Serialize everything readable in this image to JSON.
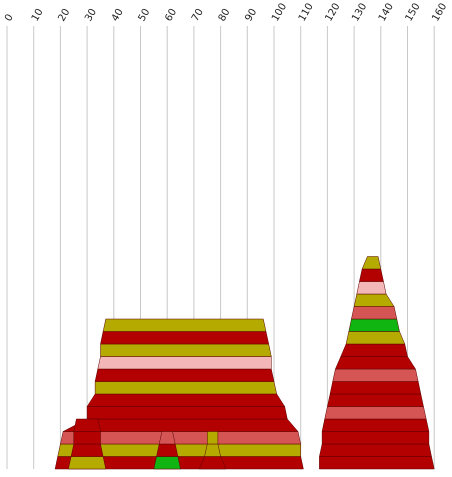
{
  "chart_data": {
    "type": "area",
    "x_axis": {
      "ticks": [
        "0",
        "10",
        "20",
        "30",
        "40",
        "50",
        "60",
        "70",
        "80",
        "90",
        "100",
        "110",
        "120",
        "130",
        "140",
        "150",
        "160"
      ],
      "tick_values": [
        0,
        10,
        20,
        30,
        40,
        50,
        60,
        70,
        80,
        90,
        100,
        110,
        120,
        130,
        140,
        150,
        160
      ],
      "range": [
        0,
        165
      ],
      "label_rotation": -60
    },
    "grid": true,
    "palette": {
      "red": "#b30000",
      "salmon": "#d55555",
      "olive": "#b5aa00",
      "green": "#11b511",
      "pink": "#f4b7b7"
    },
    "stacks": [
      {
        "name": "",
        "layers": [
          {
            "color": "red",
            "bottom": [
              18,
              111
            ],
            "top": [
              19,
              110
            ]
          },
          {
            "color": "olive",
            "bottom": [
              19,
              110
            ],
            "top": [
              20,
              110
            ]
          },
          {
            "color": "salmon",
            "bottom": [
              20,
              110
            ],
            "top": [
              21,
              109
            ]
          },
          {
            "color": "red",
            "bottom": [
              21,
              109
            ],
            "top": [
              30,
              105
            ]
          },
          {
            "color": "red",
            "bottom": [
              30,
              105
            ],
            "top": [
              30,
              104
            ]
          },
          {
            "color": "red",
            "bottom": [
              30,
              104
            ],
            "top": [
              33,
              101
            ]
          },
          {
            "color": "olive",
            "bottom": [
              33,
              101
            ],
            "top": [
              33,
              100
            ]
          },
          {
            "color": "red",
            "bottom": [
              33,
              100
            ],
            "top": [
              34,
              99
            ]
          },
          {
            "color": "pink",
            "bottom": [
              34,
              99
            ],
            "top": [
              35,
              99
            ]
          },
          {
            "color": "olive",
            "bottom": [
              35,
              99
            ],
            "top": [
              35,
              98
            ]
          },
          {
            "color": "red",
            "bottom": [
              35,
              98
            ],
            "top": [
              36,
              97
            ]
          },
          {
            "color": "olive",
            "bottom": [
              36,
              97
            ],
            "top": [
              37,
              96
            ]
          }
        ]
      },
      {
        "name": "",
        "layers": [
          {
            "color": "olive",
            "bottom": [
              23,
              37
            ],
            "top": [
              24,
              36
            ]
          },
          {
            "color": "red",
            "bottom": [
              24,
              36
            ],
            "top": [
              25,
              35
            ]
          },
          {
            "color": "red",
            "bottom": [
              25,
              35
            ],
            "top": [
              25,
              35
            ]
          },
          {
            "color": "red",
            "bottom": [
              25,
              35
            ],
            "top": [
              26,
              34
            ]
          }
        ]
      },
      {
        "name": "",
        "layers": [
          {
            "color": "green",
            "bottom": [
              55,
              65
            ],
            "top": [
              56,
              64
            ]
          },
          {
            "color": "red",
            "bottom": [
              56,
              64
            ],
            "top": [
              57,
              63
            ]
          },
          {
            "color": "salmon",
            "bottom": [
              57,
              63
            ],
            "top": [
              58,
              62
            ]
          }
        ]
      },
      {
        "name": "",
        "layers": [
          {
            "color": "red",
            "bottom": [
              72,
              82
            ],
            "top": [
              74,
              80
            ]
          },
          {
            "color": "olive",
            "bottom": [
              74,
              80
            ],
            "top": [
              75,
              79
            ]
          },
          {
            "color": "olive",
            "bottom": [
              75,
              79
            ],
            "top": [
              75,
              79
            ]
          }
        ]
      },
      {
        "name": "",
        "layers": [
          {
            "color": "red",
            "bottom": [
              117,
              160
            ],
            "top": [
              117,
              159
            ]
          },
          {
            "color": "red",
            "bottom": [
              117,
              159
            ],
            "top": [
              118,
              158
            ]
          },
          {
            "color": "red",
            "bottom": [
              118,
              158
            ],
            "top": [
              118,
              158
            ]
          },
          {
            "color": "red",
            "bottom": [
              118,
              158
            ],
            "top": [
              119,
              157
            ]
          },
          {
            "color": "salmon",
            "bottom": [
              119,
              157
            ],
            "top": [
              120,
              156
            ]
          },
          {
            "color": "red",
            "bottom": [
              120,
              156
            ],
            "top": [
              121,
              155
            ]
          },
          {
            "color": "red",
            "bottom": [
              121,
              155
            ],
            "top": [
              122,
              154
            ]
          },
          {
            "color": "salmon",
            "bottom": [
              122,
              154
            ],
            "top": [
              123,
              153
            ]
          },
          {
            "color": "red",
            "bottom": [
              123,
              153
            ],
            "top": [
              125,
              150
            ]
          },
          {
            "color": "red",
            "bottom": [
              125,
              150
            ],
            "top": [
              127,
              149
            ]
          },
          {
            "color": "olive",
            "bottom": [
              127,
              149
            ],
            "top": [
              128,
              147
            ]
          },
          {
            "color": "green",
            "bottom": [
              128,
              147
            ],
            "top": [
              129,
              146
            ]
          },
          {
            "color": "salmon",
            "bottom": [
              129,
              146
            ],
            "top": [
              130,
              145
            ]
          },
          {
            "color": "olive",
            "bottom": [
              130,
              145
            ],
            "top": [
              131,
              142
            ]
          },
          {
            "color": "pink",
            "bottom": [
              131,
              142
            ],
            "top": [
              132,
              141
            ]
          },
          {
            "color": "red",
            "bottom": [
              132,
              141
            ],
            "top": [
              133,
              140
            ]
          },
          {
            "color": "olive",
            "bottom": [
              133,
              140
            ],
            "top": [
              135,
              139
            ]
          }
        ]
      }
    ]
  }
}
